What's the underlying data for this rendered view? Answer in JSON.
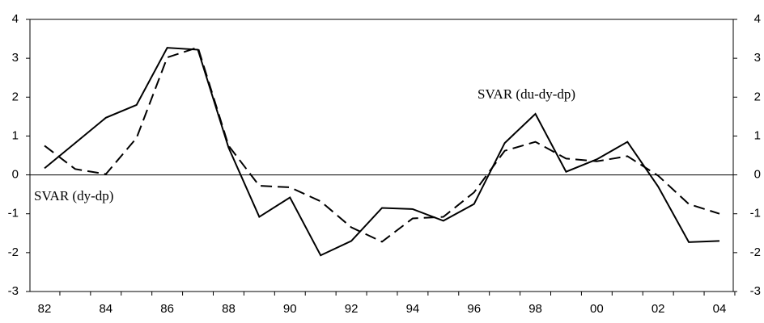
{
  "chart_data": {
    "type": "line",
    "categories": [
      "82",
      null,
      "84",
      null,
      "86",
      null,
      "88",
      null,
      "90",
      null,
      "92",
      null,
      "94",
      null,
      "96",
      null,
      "98",
      null,
      "00",
      null,
      "02",
      null,
      "04"
    ],
    "series": [
      {
        "name": "SVAR (du-dy-dp)",
        "color": "#000000",
        "dash": "solid",
        "values": [
          0.17,
          0.82,
          1.47,
          1.8,
          3.27,
          3.22,
          0.7,
          -1.08,
          -0.58,
          -2.07,
          -1.7,
          -0.85,
          -0.88,
          -1.18,
          -0.75,
          0.82,
          1.57,
          0.08,
          0.4,
          0.85,
          -0.3,
          -1.73,
          -1.7
        ]
      },
      {
        "name": "SVAR (dy-dp)",
        "color": "#000000",
        "dash": "dashed",
        "values": [
          0.75,
          0.15,
          0.02,
          0.95,
          3.02,
          3.28,
          0.75,
          -0.28,
          -0.32,
          -0.68,
          -1.35,
          -1.72,
          -1.12,
          -1.08,
          -0.45,
          0.62,
          0.85,
          0.42,
          0.35,
          0.48,
          -0.02,
          -0.75,
          -1.0
        ]
      }
    ],
    "ylim": [
      -3,
      4
    ],
    "yticks": [
      -3,
      -2,
      -1,
      0,
      1,
      2,
      3,
      4
    ],
    "y2lim": [
      -3,
      4
    ],
    "y2ticks": [
      -3,
      -2,
      -1,
      0,
      1,
      2,
      3,
      4
    ],
    "zero_line": true
  }
}
